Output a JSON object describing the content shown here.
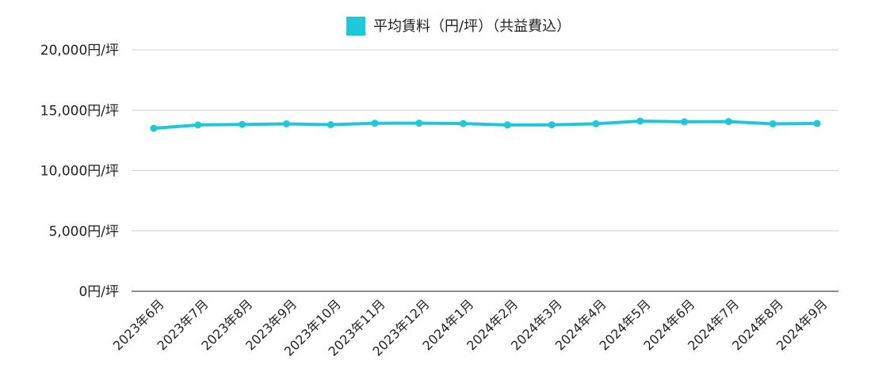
{
  "chart_data": {
    "type": "line",
    "title": "",
    "xlabel": "",
    "ylabel": "",
    "ylim": [
      0,
      20000
    ],
    "grid": true,
    "legend_position": "top-center",
    "y_tick_labels": [
      "0円/坪",
      "5,000円/坪",
      "10,000円/坪",
      "15,000円/坪",
      "20,000円/坪"
    ],
    "y_tick_values": [
      0,
      5000,
      10000,
      15000,
      20000
    ],
    "categories": [
      "2023年6月",
      "2023年7月",
      "2023年8月",
      "2023年9月",
      "2023年10月",
      "2023年11月",
      "2023年12月",
      "2024年1月",
      "2024年2月",
      "2024年3月",
      "2024年4月",
      "2024年5月",
      "2024年6月",
      "2024年7月",
      "2024年8月",
      "2024年9月"
    ],
    "series": [
      {
        "name": "平均賃料（円/坪）（共益費込）",
        "color": "#1ec8d8",
        "values": [
          13500,
          13780,
          13820,
          13870,
          13800,
          13920,
          13930,
          13890,
          13780,
          13790,
          13880,
          14100,
          14040,
          14060,
          13870,
          13900
        ]
      }
    ]
  }
}
